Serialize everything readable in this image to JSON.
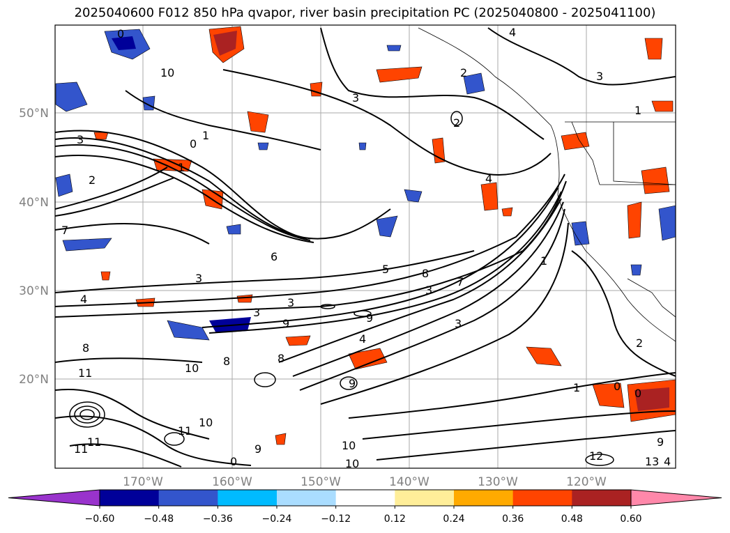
{
  "title": "2025040600 F012 850 hPa qvapor, river basin precipitation PC (2025040800 - 2025041100)",
  "map": {
    "lat_labels": [
      "50°N",
      "40°N",
      "30°N",
      "20°N"
    ],
    "lon_labels": [
      "170°W",
      "160°W",
      "150°W",
      "140°W",
      "130°W",
      "120°W"
    ],
    "contour_labels": [
      "0",
      "10",
      "1",
      "4",
      "3",
      "3",
      "3",
      "2",
      "2",
      "0",
      "1",
      "3",
      "2",
      "1",
      "4",
      "1",
      "7",
      "6",
      "5",
      "3",
      "8",
      "7",
      "4",
      "3",
      "3",
      "9",
      "9",
      "3",
      "8",
      "4",
      "8",
      "10",
      "8",
      "9",
      "11",
      "10",
      "11",
      "11",
      "11",
      "10",
      "9",
      "0",
      "10",
      "12",
      "2",
      "1",
      "0",
      "0",
      "13",
      "4",
      "9"
    ]
  },
  "colorbar": {
    "ticks": [
      "−0.60",
      "−0.48",
      "−0.36",
      "−0.24",
      "−0.12",
      "0.12",
      "0.24",
      "0.36",
      "0.48",
      "0.60"
    ],
    "colors": [
      "#9933cc",
      "#000099",
      "#3355cc",
      "#00bbff",
      "#aaddff",
      "#ffffff",
      "#ffee99",
      "#ffaa00",
      "#ff4400",
      "#aa2222",
      "#ff88aa"
    ]
  }
}
